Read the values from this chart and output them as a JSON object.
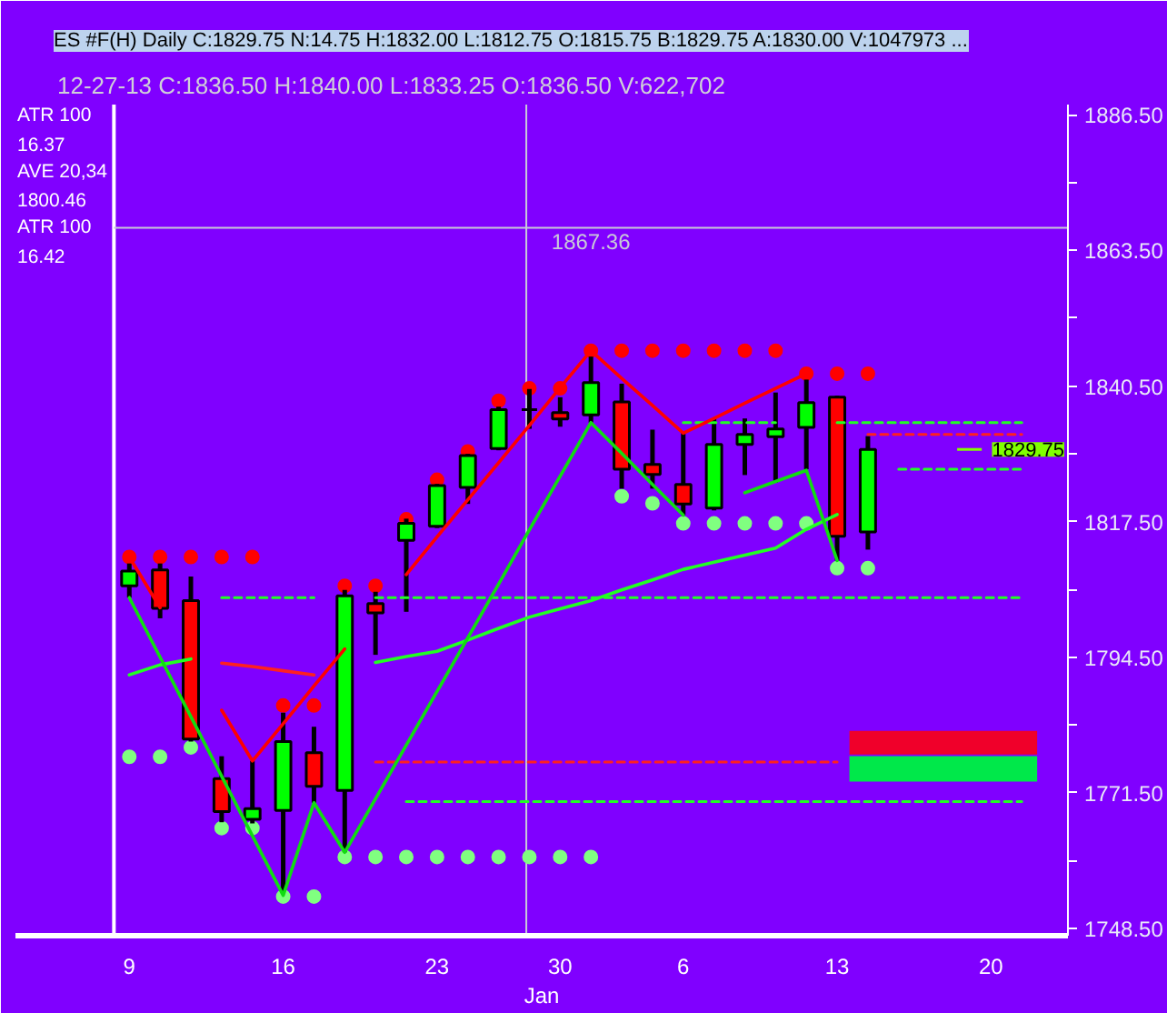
{
  "chart_data": {
    "type": "candlestick",
    "title": "ES #F(H) Daily C:1829.75 N:14.75 H:1832.00 L:1812.75 O:1815.75 B:1829.75 A:1830.00 V:1047973 ...",
    "subtitle": "12-27-13   C:1836.50   H:1840.00   L:1833.25   O:1836.50   V:622,702",
    "annotations": [
      "ATR 100",
      "16.37",
      "AVE 20,34",
      "1800.46",
      "ATR 100",
      "16.42"
    ],
    "xlabel": "Jan",
    "categories": [
      "9",
      null,
      null,
      null,
      null,
      "16",
      null,
      null,
      null,
      null,
      "23",
      null,
      null,
      null,
      "30",
      null,
      null,
      null,
      "6",
      null,
      null,
      null,
      null,
      "13",
      null,
      null,
      null,
      null,
      "20",
      null,
      null
    ],
    "ohlc": [
      [
        1806.6,
        1810.4,
        1804.6,
        1809.1
      ],
      [
        1809.3,
        1810.4,
        1801.1,
        1802.8
      ],
      [
        1804.1,
        1808.2,
        1780.2,
        1780.6
      ],
      [
        1773.9,
        1777.7,
        1766.5,
        1768.3
      ],
      [
        1767.0,
        1776.9,
        1766.3,
        1768.8
      ],
      [
        1768.5,
        1785.1,
        1754.6,
        1780.2
      ],
      [
        1778.3,
        1782.7,
        1769.8,
        1772.6
      ],
      [
        1771.9,
        1805.9,
        1761.4,
        1804.9
      ],
      [
        1803.6,
        1805.6,
        1794.9,
        1802.0
      ],
      [
        1814.3,
        1818.0,
        1802.2,
        1817.2
      ],
      [
        1816.7,
        1823.9,
        1816.4,
        1823.6
      ],
      [
        1823.3,
        1829.0,
        1820.5,
        1828.7
      ],
      [
        1829.9,
        1837.0,
        1829.6,
        1836.5
      ],
      [
        1836.5,
        1840.0,
        1833.25,
        1836.5
      ],
      [
        1836.0,
        1838.6,
        1833.6,
        1834.9
      ],
      [
        1835.6,
        1845.5,
        1834.3,
        1841.1
      ],
      [
        1837.8,
        1840.9,
        1823.1,
        1826.4
      ],
      [
        1827.2,
        1833.1,
        1823.1,
        1825.5
      ],
      [
        1823.8,
        1832.6,
        1818.6,
        1820.5
      ],
      [
        1819.8,
        1835.0,
        1819.4,
        1830.6
      ],
      [
        1830.6,
        1835.0,
        1825.4,
        1832.3
      ],
      [
        1831.9,
        1839.4,
        1824.1,
        1833.2
      ],
      [
        1833.5,
        1841.6,
        1826.4,
        1837.7
      ],
      [
        1838.6,
        1838.9,
        1810.9,
        1815.0
      ],
      [
        1815.75,
        1832.0,
        1812.75,
        1829.75
      ],
      null,
      null,
      null,
      null,
      null,
      null
    ],
    "colors": [
      "#00ff00",
      "#ff0000",
      "#ff0000",
      "#ff0000",
      "#00ff00",
      "#00ff00",
      "#ff0000",
      "#00ff00",
      "#ff0000",
      "#00ff00",
      "#00ff00",
      "#00ff00",
      "#00ff00",
      "#000000",
      "#ff0000",
      "#00ff00",
      "#ff0000",
      "#ff0000",
      "#ff0000",
      "#00ff00",
      "#00ff00",
      "#00ff00",
      "#00ff00",
      "#ff0000",
      "#00ff00",
      null,
      null,
      null,
      null,
      null,
      null
    ],
    "series": [
      {
        "type": "line",
        "color": "#22ff22",
        "line_style": "dashed",
        "values": [
          null,
          null,
          null,
          1804.6,
          1804.6,
          1804.6,
          1804.6,
          null,
          1804.6,
          1804.6,
          1804.6,
          1804.6,
          1804.6,
          1804.6,
          1804.6,
          1804.6,
          1804.6,
          1804.6,
          1804.6,
          1804.6,
          1804.6,
          1804.6,
          1804.6,
          1804.6,
          1804.6,
          1804.6,
          1804.6,
          1804.6,
          1804.6,
          1804.6,
          null
        ]
      },
      {
        "type": "line",
        "color": "#ff2020",
        "line_style": "dashed",
        "values": [
          null,
          null,
          null,
          null,
          null,
          null,
          null,
          null,
          1776.7,
          1776.7,
          1776.7,
          1776.7,
          1776.7,
          1776.7,
          1776.7,
          1776.7,
          1776.7,
          1776.7,
          1776.7,
          1776.7,
          1776.7,
          1776.7,
          1776.7,
          1776.7,
          null,
          null,
          null,
          null,
          null,
          null,
          null
        ]
      },
      {
        "type": "line",
        "color": "#22ff22",
        "line_style": "dashed",
        "values": [
          null,
          null,
          null,
          null,
          null,
          null,
          null,
          null,
          null,
          1770.0,
          1770.0,
          1770.0,
          1770.0,
          1770.0,
          1770.0,
          1770.0,
          1770.0,
          1770.0,
          1770.0,
          1770.0,
          1770.0,
          1770.0,
          1770.0,
          1770.0,
          1770.0,
          1770.0,
          1770.0,
          1770.0,
          1770.0,
          1770.0,
          null
        ]
      },
      {
        "type": "line",
        "color": "#22ff22",
        "line_style": "dashed",
        "values": [
          null,
          null,
          null,
          null,
          null,
          null,
          null,
          null,
          null,
          null,
          null,
          null,
          null,
          null,
          null,
          null,
          null,
          null,
          1834.3,
          1834.3,
          1834.3,
          1834.3,
          null,
          1834.3,
          1834.3,
          1834.3,
          1834.3,
          1834.3,
          1834.3,
          1834.3,
          null
        ]
      },
      {
        "type": "line",
        "color": "#ff2020",
        "line_style": "dashed",
        "values": [
          null,
          null,
          null,
          null,
          null,
          null,
          null,
          null,
          null,
          null,
          null,
          null,
          null,
          null,
          null,
          null,
          null,
          null,
          null,
          null,
          null,
          null,
          null,
          null,
          1832.3,
          1832.3,
          1832.3,
          1832.3,
          1832.3,
          1832.3,
          null
        ]
      },
      {
        "type": "line",
        "color": "#22ff22",
        "line_style": "dashed",
        "values": [
          null,
          null,
          null,
          null,
          null,
          null,
          null,
          null,
          null,
          null,
          null,
          null,
          null,
          null,
          null,
          null,
          null,
          null,
          null,
          null,
          null,
          null,
          null,
          null,
          null,
          1826.4,
          1826.4,
          1826.4,
          1826.4,
          1826.4,
          null
        ]
      },
      {
        "type": "line",
        "color": "#22ff22",
        "values": [
          1791.5,
          1793.2,
          1794.2,
          null,
          null,
          null,
          null,
          null,
          1793.6,
          1794.6,
          1795.5,
          1797.4,
          1799.4,
          1801.3,
          1802.7,
          1804.1,
          1805.9,
          1807.6,
          1809.4,
          1810.6,
          1811.8,
          1813.0,
          1816.2,
          1818.7,
          null,
          null,
          null,
          null,
          null,
          null,
          null
        ]
      },
      {
        "type": "line",
        "color": "#ff2020",
        "values": [
          null,
          null,
          null,
          1793.5,
          1792.9,
          1792.2,
          1791.5,
          null,
          null,
          null,
          null,
          null,
          null,
          null,
          null,
          null,
          null,
          null,
          null,
          null,
          null,
          null,
          null,
          null,
          null,
          null,
          null,
          null,
          null,
          null,
          null
        ]
      },
      {
        "type": "line",
        "color": "#ff0000",
        "values": [
          1811.5,
          1802.9,
          null,
          1785.5,
          1776.9,
          1783.2,
          1789.6,
          1795.9,
          null,
          1808.5,
          1814.9,
          1821.2,
          1827.5,
          1833.8,
          1840.2,
          1846.5,
          1841.8,
          1837.2,
          1832.5,
          1835.0,
          1837.6,
          1840.1,
          1842.6,
          null,
          null,
          null,
          null,
          null,
          null,
          null,
          null
        ]
      },
      {
        "type": "line",
        "color": "#11dd11",
        "values": [
          1804.6,
          1794.5,
          1784.4,
          1774.3,
          1764.2,
          1754.1,
          1769.8,
          1761.4,
          1770.5,
          1779.6,
          1788.7,
          1797.8,
          1806.9,
          1816.1,
          1825.2,
          1834.3,
          1829.1,
          1823.8,
          1818.6,
          null,
          1822.4,
          1824.3,
          1826.2,
          1810.9,
          null,
          null,
          null,
          null,
          null,
          null,
          null
        ]
      },
      {
        "type": "scatter",
        "marker": "circle",
        "color": "#ff0000",
        "values": [
          1811.5,
          1811.5,
          1811.5,
          1811.5,
          1811.5,
          1786.3,
          1786.3,
          1806.6,
          1806.6,
          1817.9,
          1824.6,
          1829.4,
          1838.0,
          1840.1,
          1840.1,
          1846.5,
          1846.5,
          1846.5,
          1846.5,
          1846.5,
          1846.5,
          1846.5,
          1842.6,
          1842.6,
          1842.6,
          null,
          null,
          null,
          null,
          null,
          null
        ]
      },
      {
        "type": "scatter",
        "marker": "circle",
        "color": "#80ff80",
        "values": [
          1777.6,
          1777.6,
          1779.2,
          1765.5,
          1765.5,
          1753.9,
          1753.9,
          1760.6,
          1760.6,
          1760.6,
          1760.6,
          1760.6,
          1760.6,
          1760.6,
          1760.6,
          1760.6,
          1821.8,
          1820.6,
          1817.2,
          1817.2,
          1817.2,
          1817.2,
          1817.2,
          1809.6,
          1809.6,
          null,
          null,
          null,
          null,
          null,
          null
        ]
      }
    ],
    "ylim": [
      1747.25,
      1888.25
    ],
    "yticks": [
      {
        "value": 1748.5,
        "label": "1748.50"
      },
      {
        "value": 1760,
        "label": null
      },
      {
        "value": 1771.5,
        "label": "1771.50"
      },
      {
        "value": 1783,
        "label": null
      },
      {
        "value": 1794.5,
        "label": "1794.50"
      },
      {
        "value": 1806,
        "label": null
      },
      {
        "value": 1817.5,
        "label": "1817.50"
      },
      {
        "value": 1829,
        "label": null
      },
      {
        "value": 1840.5,
        "label": "1840.50"
      },
      {
        "value": 1852,
        "label": null
      },
      {
        "value": 1863.5,
        "label": "1863.50"
      },
      {
        "value": 1875,
        "label": null
      },
      {
        "value": 1886.5,
        "label": "1886.50"
      }
    ],
    "ref_lines": [
      {
        "axis": "y",
        "value": 1867.36,
        "label": "1867.36",
        "color": "#c8c8d8",
        "line_style": "solid"
      },
      {
        "axis": "y",
        "value": 1829.75,
        "label": "1829.75",
        "color": "#80ff00"
      }
    ],
    "bands": [
      {
        "axis": "y",
        "from": 1778.0,
        "to": 1782.0,
        "color": "#f0002a"
      },
      {
        "axis": "y",
        "from": 1773.4,
        "to": 1777.7,
        "color": "#00e84a"
      }
    ]
  }
}
